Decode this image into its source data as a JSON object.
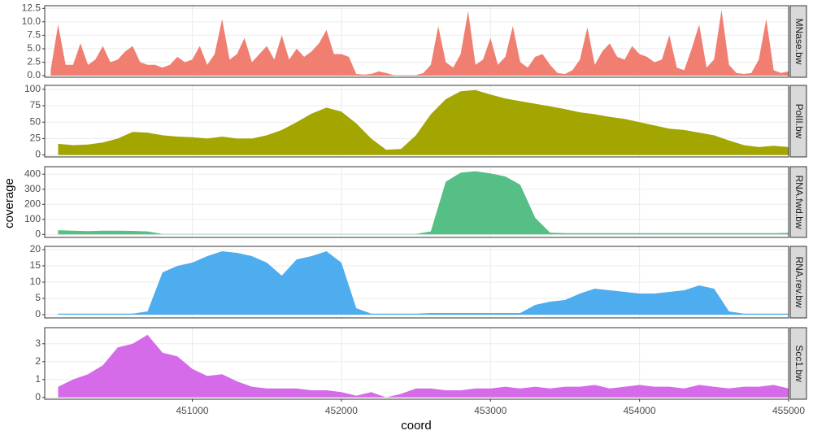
{
  "xlabel": "coord",
  "ylabel": "coverage",
  "chart_data": [
    {
      "type": "area",
      "facet": "MNase.bw",
      "color": "#F07F72",
      "grid": true,
      "xlim": [
        450010,
        455000
      ],
      "xticks": [
        451000,
        452000,
        453000,
        454000,
        455000
      ],
      "ylim": [
        -0.3,
        13
      ],
      "yticks": [
        {
          "value": 0,
          "label": "0.0"
        },
        {
          "value": 2.5,
          "label": "2.5"
        },
        {
          "value": 5,
          "label": "5.0"
        },
        {
          "value": 7.5,
          "label": "7.5"
        },
        {
          "value": 10,
          "label": "10.0"
        },
        {
          "value": 12.5,
          "label": "12.5"
        }
      ],
      "x": [
        450050,
        450100,
        450150,
        450200,
        450250,
        450300,
        450350,
        450400,
        450450,
        450500,
        450550,
        450600,
        450650,
        450700,
        450750,
        450800,
        450850,
        450900,
        450950,
        451000,
        451050,
        451100,
        451150,
        451200,
        451250,
        451300,
        451350,
        451400,
        451450,
        451500,
        451550,
        451600,
        451650,
        451700,
        451750,
        451800,
        451850,
        451900,
        451950,
        452000,
        452050,
        452100,
        452150,
        452200,
        452250,
        452300,
        452350,
        452400,
        452450,
        452500,
        452550,
        452600,
        452650,
        452700,
        452750,
        452800,
        452850,
        452900,
        452950,
        453000,
        453050,
        453100,
        453150,
        453200,
        453250,
        453300,
        453350,
        453400,
        453450,
        453500,
        453550,
        453600,
        453650,
        453700,
        453750,
        453800,
        453850,
        453900,
        453950,
        454000,
        454050,
        454100,
        454150,
        454200,
        454250,
        454300,
        454350,
        454400,
        454450,
        454500,
        454550,
        454600,
        454650,
        454700,
        454750,
        454800,
        454850,
        454900,
        454950,
        455000
      ],
      "values": [
        1,
        9.5,
        2,
        2,
        6,
        2,
        3,
        5.5,
        2.5,
        3,
        4.5,
        5.5,
        2.5,
        2,
        2,
        1.5,
        2,
        3.5,
        2.5,
        3,
        5.5,
        2,
        4,
        10.5,
        3,
        4,
        7,
        2.5,
        4,
        5.5,
        3,
        7.5,
        3,
        5,
        3.5,
        4.5,
        6,
        8.5,
        4,
        4,
        3.5,
        0.3,
        0.2,
        0.3,
        0.8,
        0.5,
        0.1,
        0.1,
        0.1,
        0.1,
        0.5,
        2,
        9.2,
        2.5,
        1.5,
        4,
        12,
        2,
        3,
        7,
        2,
        3.5,
        9.2,
        2.5,
        1.5,
        3.5,
        4,
        2,
        0.5,
        0.3,
        1,
        3,
        9,
        2,
        4.5,
        6,
        3.5,
        3,
        5.5,
        4,
        3.5,
        2.5,
        3,
        7.5,
        1.5,
        1,
        5,
        9.5,
        1.5,
        3,
        12.2,
        2,
        0.5,
        0.3,
        0.5,
        3,
        10.5,
        1,
        0.5,
        0.8
      ]
    },
    {
      "type": "area",
      "facet": "PolII.bw",
      "color": "#A3A500",
      "grid": true,
      "xlim": [
        450010,
        455000
      ],
      "xticks": [
        451000,
        452000,
        453000,
        454000,
        455000
      ],
      "ylim": [
        -3,
        106
      ],
      "yticks": [
        0,
        25,
        50,
        75,
        100
      ],
      "x": [
        450100,
        450200,
        450300,
        450400,
        450500,
        450600,
        450700,
        450800,
        450900,
        451000,
        451100,
        451200,
        451300,
        451400,
        451500,
        451600,
        451700,
        451800,
        451900,
        452000,
        452100,
        452200,
        452300,
        452400,
        452500,
        452600,
        452700,
        452800,
        452900,
        453000,
        453100,
        453200,
        453300,
        453400,
        453500,
        453600,
        453700,
        453800,
        453900,
        454000,
        454100,
        454200,
        454300,
        454400,
        454500,
        454600,
        454700,
        454800,
        454900,
        455000
      ],
      "values": [
        17,
        15,
        16,
        19,
        25,
        35,
        34,
        30,
        28,
        27,
        25,
        28,
        25,
        25,
        30,
        38,
        50,
        63,
        72,
        66,
        48,
        25,
        8,
        9,
        30,
        62,
        85,
        97,
        99,
        92,
        86,
        82,
        78,
        74,
        70,
        65,
        62,
        58,
        55,
        50,
        45,
        40,
        38,
        34,
        30,
        22,
        15,
        12,
        14,
        12
      ]
    },
    {
      "type": "area",
      "facet": "RNA.fwd.bw",
      "color": "#56BF85",
      "grid": true,
      "xlim": [
        450010,
        455000
      ],
      "xticks": [
        451000,
        452000,
        453000,
        454000,
        455000
      ],
      "ylim": [
        -20,
        450
      ],
      "yticks": [
        0,
        100,
        200,
        300,
        400
      ],
      "x": [
        450100,
        450200,
        450300,
        450400,
        450500,
        450600,
        450700,
        450800,
        450900,
        451000,
        451100,
        451200,
        451300,
        451400,
        451500,
        451600,
        451700,
        451800,
        451900,
        452000,
        452100,
        452200,
        452300,
        452400,
        452500,
        452600,
        452700,
        452800,
        452900,
        453000,
        453100,
        453200,
        453300,
        453400,
        453500,
        453600,
        453700,
        453800,
        453900,
        454000,
        454100,
        454200,
        454300,
        454400,
        454500,
        454600,
        454700,
        454800,
        454900,
        455000
      ],
      "values": [
        28,
        25,
        22,
        25,
        25,
        23,
        20,
        3,
        3,
        3,
        3,
        3,
        3,
        3,
        3,
        3,
        3,
        3,
        3,
        3,
        3,
        3,
        3,
        3,
        3,
        20,
        350,
        410,
        420,
        405,
        385,
        330,
        110,
        12,
        8,
        8,
        8,
        8,
        8,
        8,
        8,
        8,
        8,
        8,
        8,
        8,
        8,
        8,
        8,
        10
      ]
    },
    {
      "type": "area",
      "facet": "RNA.rev.bw",
      "color": "#4EADEE",
      "grid": true,
      "xlim": [
        450010,
        455000
      ],
      "xticks": [
        451000,
        452000,
        453000,
        454000,
        455000
      ],
      "ylim": [
        -1,
        21
      ],
      "yticks": [
        0,
        5,
        10,
        15,
        20
      ],
      "x": [
        450100,
        450200,
        450300,
        450400,
        450500,
        450600,
        450700,
        450800,
        450900,
        451000,
        451100,
        451200,
        451300,
        451400,
        451500,
        451600,
        451700,
        451800,
        451900,
        452000,
        452100,
        452200,
        452300,
        452400,
        452500,
        452600,
        452700,
        452800,
        452900,
        453000,
        453100,
        453200,
        453300,
        453400,
        453500,
        453600,
        453700,
        453800,
        453900,
        454000,
        454100,
        454200,
        454300,
        454400,
        454500,
        454600,
        454700,
        454800,
        454900,
        455000
      ],
      "values": [
        0.3,
        0.3,
        0.3,
        0.3,
        0.3,
        0.3,
        1,
        13,
        15,
        16,
        18,
        19.5,
        19,
        18,
        16,
        12,
        17,
        18,
        19.5,
        16,
        2,
        0.3,
        0.3,
        0.3,
        0.3,
        0.5,
        0.5,
        0.5,
        0.5,
        0.5,
        0.5,
        0.5,
        3,
        4,
        4.5,
        6.5,
        8,
        7.5,
        7,
        6.5,
        6.5,
        7,
        7.5,
        9,
        8,
        1,
        0.3,
        0.3,
        0.3,
        0.3
      ]
    },
    {
      "type": "area",
      "facet": "Scc1.bw",
      "color": "#D66BEA",
      "grid": true,
      "xlim": [
        450010,
        455000
      ],
      "xticks": [
        451000,
        452000,
        453000,
        454000,
        455000
      ],
      "ylim": [
        -0.1,
        3.9
      ],
      "yticks": [
        0,
        1,
        2,
        3
      ],
      "x": [
        450100,
        450200,
        450300,
        450400,
        450500,
        450600,
        450700,
        450800,
        450900,
        451000,
        451100,
        451200,
        451300,
        451400,
        451500,
        451600,
        451700,
        451800,
        451900,
        452000,
        452100,
        452200,
        452300,
        452400,
        452500,
        452600,
        452700,
        452800,
        452900,
        453000,
        453100,
        453200,
        453300,
        453400,
        453500,
        453600,
        453700,
        453800,
        453900,
        454000,
        454100,
        454200,
        454300,
        454400,
        454500,
        454600,
        454700,
        454800,
        454900,
        455000
      ],
      "values": [
        0.6,
        1.0,
        1.3,
        1.8,
        2.8,
        3.0,
        3.5,
        2.5,
        2.3,
        1.6,
        1.2,
        1.3,
        0.9,
        0.6,
        0.5,
        0.5,
        0.5,
        0.4,
        0.4,
        0.3,
        0.1,
        0.3,
        0,
        0.2,
        0.5,
        0.5,
        0.4,
        0.4,
        0.5,
        0.5,
        0.6,
        0.5,
        0.6,
        0.5,
        0.6,
        0.6,
        0.7,
        0.5,
        0.6,
        0.7,
        0.6,
        0.6,
        0.5,
        0.7,
        0.6,
        0.5,
        0.6,
        0.6,
        0.7,
        0.5
      ]
    }
  ]
}
